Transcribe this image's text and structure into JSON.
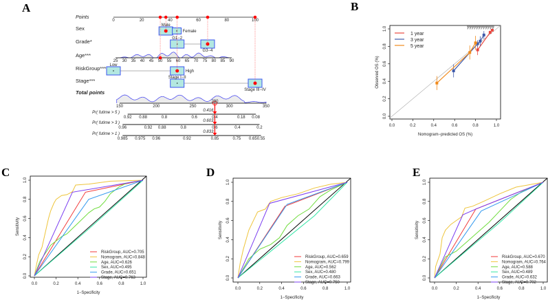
{
  "panels": {
    "A": "A",
    "B": "B",
    "C": "C",
    "D": "D",
    "E": "E"
  },
  "colors": {
    "red": "#f23a3a",
    "yellow": "#eec43a",
    "green": "#6fdc3c",
    "teal": "#33e6a6",
    "blue": "#3399ee",
    "purple": "#7a3cf0",
    "calib_1": "#e8473f",
    "calib_3": "#3f5aaa",
    "calib_5": "#f08a1c",
    "box_fill": "#b3e8e0",
    "box_edge": "#3b55f0",
    "density": "#3a3af0"
  },
  "nomogram": {
    "points_axis": {
      "label": "Points",
      "ticks": [
        0,
        20,
        40,
        60,
        80,
        100
      ]
    },
    "variables": [
      {
        "label": "Sex",
        "levels": [
          {
            "name": "Male",
            "points": 37,
            "selected": true
          },
          {
            "name": "Female",
            "points": 44.7
          }
        ]
      },
      {
        "label": "Grade*",
        "levels": [
          {
            "name": "G1−2",
            "points": 45
          },
          {
            "name": "G3−4",
            "points": 66.5,
            "selected": true
          }
        ]
      },
      {
        "label": "Age***",
        "continuous": {
          "ticks": [
            25,
            30,
            35,
            40,
            45,
            50,
            55,
            60,
            65,
            70,
            75,
            80,
            85,
            90
          ],
          "min": 25,
          "max": 90,
          "points_at_min": 1.5,
          "points_at_max": 83.5,
          "selected": 50
        }
      },
      {
        "label": "RiskGroup***",
        "levels": [
          {
            "name": "Low",
            "points": 0
          },
          {
            "name": "High",
            "points": 45,
            "selected": true
          }
        ]
      },
      {
        "label": "Stage***",
        "levels": [
          {
            "name": "Stage I−II",
            "points": 45
          },
          {
            "name": "Stage III−IV",
            "points": 100,
            "selected": true
          }
        ]
      }
    ],
    "total": {
      "label": "Total points",
      "ticks": [
        150,
        200,
        250,
        300,
        350
      ],
      "selected": 280,
      "selected_label": "280"
    },
    "probabilities": [
      {
        "label": "Pr( futime > 5 )",
        "value": "0.416",
        "ticks": [
          {
            "t": "0.92",
            "at": 161
          },
          {
            "t": "0.88",
            "at": 182
          },
          {
            "t": "0.8",
            "at": 211
          },
          {
            "t": "0.6",
            "at": 252
          },
          {
            "t": "0.4",
            "at": 280
          },
          {
            "t": "0.18",
            "at": 316
          },
          {
            "t": "0.08",
            "at": 336
          }
        ]
      },
      {
        "label": "Pr( futime > 3 )",
        "value": "0.603",
        "ticks": [
          {
            "t": "0.96",
            "at": 154
          },
          {
            "t": "0.92",
            "at": 189
          },
          {
            "t": "0.88",
            "at": 208
          },
          {
            "t": "0.8",
            "at": 237
          },
          {
            "t": "0.6",
            "at": 280
          },
          {
            "t": "0.4",
            "at": 311
          },
          {
            "t": "0.2",
            "at": 341
          }
        ]
      },
      {
        "label": "Pr( futime > 1 )",
        "value": "0.833",
        "ticks": [
          {
            "t": "0.985",
            "at": 154
          },
          {
            "t": "0.975",
            "at": 178
          },
          {
            "t": "0.96",
            "at": 200
          },
          {
            "t": "0.92",
            "at": 242
          },
          {
            "t": "0.85",
            "at": 280
          },
          {
            "t": "0.75",
            "at": 310
          },
          {
            "t": "0.65",
            "at": 332
          },
          {
            "t": "0.55",
            "at": 343
          }
        ]
      }
    ]
  },
  "chart_data": [
    {
      "type": "line",
      "panel": "B",
      "title": "",
      "xlabel": "Nomogram−predicted OS (%)",
      "ylabel": "Observed OS (%)",
      "xlim": [
        0,
        1
      ],
      "ylim": [
        0,
        1
      ],
      "xticks": [
        "0.0",
        "0.2",
        "0.4",
        "0.6",
        "0.8",
        "1.0"
      ],
      "yticks": [
        "0.0",
        "0.2",
        "0.4",
        "0.6",
        "0.8",
        "1.0"
      ],
      "legend_position": "top-left",
      "series": [
        {
          "name": "1 year",
          "color_key": "calib_1",
          "points": [
            [
              0.82,
              0.76,
              0.06
            ],
            [
              0.94,
              0.96,
              0.02
            ],
            [
              0.96,
              0.985,
              0.01
            ]
          ]
        },
        {
          "name": "3 year",
          "color_key": "calib_3",
          "points": [
            [
              0.59,
              0.52,
              0.075
            ],
            [
              0.82,
              0.83,
              0.04
            ],
            [
              0.845,
              0.86,
              0.055
            ],
            [
              0.88,
              0.93,
              0.045
            ]
          ]
        },
        {
          "name": "5 year",
          "color_key": "calib_5",
          "points": [
            [
              0.43,
              0.38,
              0.08
            ],
            [
              0.745,
              0.73,
              0.08
            ],
            [
              0.8,
              0.84,
              0.08
            ]
          ]
        }
      ]
    },
    {
      "type": "line",
      "panel": "C",
      "xlabel": "1−Specificity",
      "ylabel": "Sensitivity",
      "xlim": [
        0,
        1
      ],
      "ylim": [
        0,
        1
      ],
      "xticks": [
        "0.0",
        "0.2",
        "0.4",
        "0.6",
        "0.8",
        "1.0"
      ],
      "yticks": [
        "0.0",
        "0.2",
        "0.4",
        "0.6",
        "0.8",
        "1.0"
      ],
      "legend_position": "bottom-right",
      "series": [
        {
          "name": "RiskGroup, AUC=0.705",
          "color_key": "red",
          "points": [
            [
              0,
              0
            ],
            [
              0.47,
              0.875
            ],
            [
              1,
              1
            ]
          ]
        },
        {
          "name": "Nomogram, AUC=0.848",
          "color_key": "yellow",
          "points": [
            [
              0,
              0
            ],
            [
              0.02,
              0.12
            ],
            [
              0.04,
              0.22
            ],
            [
              0.07,
              0.3
            ],
            [
              0.1,
              0.45
            ],
            [
              0.13,
              0.6
            ],
            [
              0.15,
              0.68
            ],
            [
              0.18,
              0.76
            ],
            [
              0.2,
              0.8
            ],
            [
              0.25,
              0.84
            ],
            [
              0.3,
              0.85
            ],
            [
              0.35,
              0.88
            ],
            [
              0.38,
              0.95
            ],
            [
              0.5,
              0.96
            ],
            [
              0.7,
              0.99
            ],
            [
              1,
              1
            ]
          ]
        },
        {
          "name": "Age, AUC=0.626",
          "color_key": "green",
          "points": [
            [
              0,
              0
            ],
            [
              0.05,
              0.15
            ],
            [
              0.15,
              0.32
            ],
            [
              0.25,
              0.41
            ],
            [
              0.3,
              0.44
            ],
            [
              0.4,
              0.55
            ],
            [
              0.5,
              0.66
            ],
            [
              0.55,
              0.7
            ],
            [
              0.6,
              0.72
            ],
            [
              0.65,
              0.78
            ],
            [
              0.7,
              0.86
            ],
            [
              0.78,
              0.93
            ],
            [
              0.85,
              0.97
            ],
            [
              1,
              1
            ]
          ]
        },
        {
          "name": "Sex, AUC=0.495",
          "color_key": "teal",
          "points": [
            [
              0,
              0
            ],
            [
              0.5,
              0.49
            ],
            [
              1,
              1
            ]
          ]
        },
        {
          "name": "Grade, AUC=0.651",
          "color_key": "blue",
          "points": [
            [
              0,
              0
            ],
            [
              0.5,
              0.8
            ],
            [
              1,
              1
            ]
          ]
        },
        {
          "name": "Stage, AUC=0.763",
          "color_key": "purple",
          "points": [
            [
              0,
              0
            ],
            [
              0.35,
              0.875
            ],
            [
              1,
              1
            ]
          ]
        }
      ]
    },
    {
      "type": "line",
      "panel": "D",
      "xlabel": "1−Specificity",
      "ylabel": "Sensitivity",
      "xlim": [
        0,
        1
      ],
      "ylim": [
        0,
        1
      ],
      "xticks": [
        "0.0",
        "0.2",
        "0.4",
        "0.6",
        "0.8",
        "1.0"
      ],
      "yticks": [
        "0.0",
        "0.2",
        "0.4",
        "0.6",
        "0.8",
        "1.0"
      ],
      "legend_position": "bottom-right",
      "series": [
        {
          "name": "RiskGroup, AUC=0.659",
          "color_key": "red",
          "points": [
            [
              0,
              0
            ],
            [
              0.43,
              0.75
            ],
            [
              1,
              1
            ]
          ]
        },
        {
          "name": "Nomogram, AUC=0.799",
          "color_key": "yellow",
          "points": [
            [
              0,
              0
            ],
            [
              0.02,
              0.15
            ],
            [
              0.05,
              0.3
            ],
            [
              0.1,
              0.5
            ],
            [
              0.15,
              0.62
            ],
            [
              0.18,
              0.69
            ],
            [
              0.25,
              0.72
            ],
            [
              0.3,
              0.8
            ],
            [
              0.4,
              0.84
            ],
            [
              0.55,
              0.88
            ],
            [
              0.7,
              0.94
            ],
            [
              0.85,
              0.98
            ],
            [
              1,
              1
            ]
          ]
        },
        {
          "name": "Age, AUC=0.562",
          "color_key": "green",
          "points": [
            [
              0,
              0
            ],
            [
              0.1,
              0.2
            ],
            [
              0.2,
              0.3
            ],
            [
              0.3,
              0.35
            ],
            [
              0.38,
              0.42
            ],
            [
              0.45,
              0.55
            ],
            [
              0.55,
              0.65
            ],
            [
              0.65,
              0.72
            ],
            [
              0.75,
              0.85
            ],
            [
              0.85,
              0.92
            ],
            [
              1,
              1
            ]
          ]
        },
        {
          "name": "Sex, AUC=0.480",
          "color_key": "teal",
          "points": [
            [
              0,
              0
            ],
            [
              0.7,
              0.65
            ],
            [
              1,
              1
            ]
          ]
        },
        {
          "name": "Grade, AUC=0.663",
          "color_key": "blue",
          "points": [
            [
              0,
              0
            ],
            [
              0.45,
              0.77
            ],
            [
              1,
              1
            ]
          ]
        },
        {
          "name": "Stage, AUC=0.750",
          "color_key": "purple",
          "points": [
            [
              0,
              0
            ],
            [
              0.29,
              0.78
            ],
            [
              1,
              1
            ]
          ]
        }
      ]
    },
    {
      "type": "line",
      "panel": "E",
      "xlabel": "1−Specificity",
      "ylabel": "Sensitivity",
      "xlim": [
        0,
        1
      ],
      "ylim": [
        0,
        1
      ],
      "xticks": [
        "0.0",
        "0.2",
        "0.4",
        "0.6",
        "0.8",
        "1.0"
      ],
      "yticks": [
        "0.0",
        "0.2",
        "0.4",
        "0.6",
        "0.8",
        "1.0"
      ],
      "legend_position": "bottom-right",
      "series": [
        {
          "name": "RiskGroup, AUC=0.670",
          "color_key": "red",
          "points": [
            [
              0,
              0
            ],
            [
              0.38,
              0.72
            ],
            [
              1,
              1
            ]
          ]
        },
        {
          "name": "Nomogram, AUC=0.764",
          "color_key": "yellow",
          "points": [
            [
              0,
              0
            ],
            [
              0.01,
              0.12
            ],
            [
              0.05,
              0.25
            ],
            [
              0.07,
              0.42
            ],
            [
              0.1,
              0.5
            ],
            [
              0.15,
              0.56
            ],
            [
              0.2,
              0.6
            ],
            [
              0.25,
              0.64
            ],
            [
              0.28,
              0.73
            ],
            [
              0.35,
              0.75
            ],
            [
              0.45,
              0.8
            ],
            [
              0.6,
              0.88
            ],
            [
              0.75,
              0.95
            ],
            [
              0.9,
              0.98
            ],
            [
              1,
              1
            ]
          ]
        },
        {
          "name": "Age, AUC=0.588",
          "color_key": "green",
          "points": [
            [
              0,
              0
            ],
            [
              0.1,
              0.22
            ],
            [
              0.2,
              0.28
            ],
            [
              0.3,
              0.38
            ],
            [
              0.4,
              0.48
            ],
            [
              0.5,
              0.58
            ],
            [
              0.6,
              0.7
            ],
            [
              0.7,
              0.82
            ],
            [
              0.8,
              0.9
            ],
            [
              1,
              1
            ]
          ]
        },
        {
          "name": "Sex, AUC=0.489",
          "color_key": "teal",
          "points": [
            [
              0,
              0
            ],
            [
              0.6,
              0.58
            ],
            [
              1,
              1
            ]
          ]
        },
        {
          "name": "Grade, AUC=0.632",
          "color_key": "blue",
          "points": [
            [
              0,
              0
            ],
            [
              0.43,
              0.7
            ],
            [
              1,
              1
            ]
          ]
        },
        {
          "name": "Stage, AUC=0.702",
          "color_key": "purple",
          "points": [
            [
              0,
              0
            ],
            [
              0.26,
              0.66
            ],
            [
              0.38,
              0.72
            ],
            [
              1,
              1
            ]
          ]
        }
      ]
    }
  ]
}
